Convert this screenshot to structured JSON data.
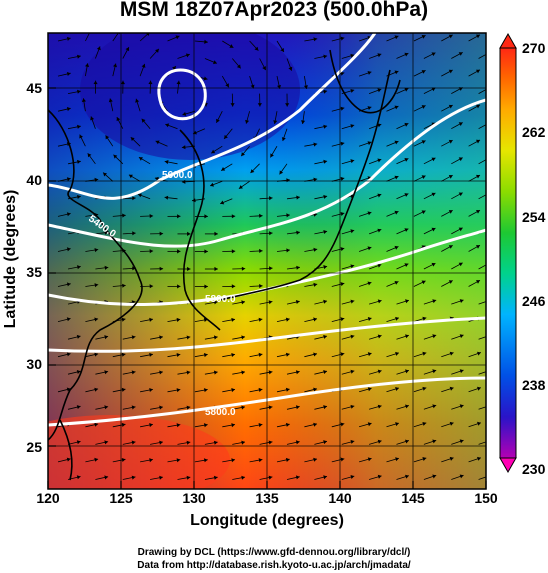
{
  "title": "MSM 18Z07Apr2023 (500.0hPa)",
  "xlabel": "Longitude (degrees)",
  "ylabel": "Latitude  (degrees)",
  "credits": {
    "line1": "Drawing by DCL (https://www.gfd-dennou.org/library/dcl/)",
    "line2": "Data from http://database.rish.kyoto-u.ac.jp/arch/jmadata/"
  },
  "chart_data": {
    "type": "heatmap",
    "variable": "temperature field with streamlines and geopotential height contours",
    "xlim": [
      120,
      150
    ],
    "ylim": [
      22.4,
      47.6
    ],
    "x_ticks": [
      "120",
      "125",
      "130",
      "135",
      "140",
      "145",
      "150"
    ],
    "y_ticks": [
      "25",
      "30",
      "35",
      "40",
      "45"
    ],
    "colorbar": {
      "range": [
        230,
        270
      ],
      "ticks": [
        "230",
        "238",
        "246",
        "254",
        "262",
        "270"
      ],
      "colors": [
        "#b400b4",
        "#2a14c8",
        "#0050e6",
        "#00b4ff",
        "#00d28c",
        "#1ec832",
        "#8cdc00",
        "#e6e600",
        "#ffaa00",
        "#ff6400",
        "#ff2814"
      ]
    },
    "contour_labels": [
      "5400.0",
      "5600.0",
      "5800.0",
      "5400.0"
    ],
    "colors": {
      "frame": "#000000",
      "contour": "#ffffff",
      "streamline": "#000000",
      "coastline": "#000000"
    }
  }
}
